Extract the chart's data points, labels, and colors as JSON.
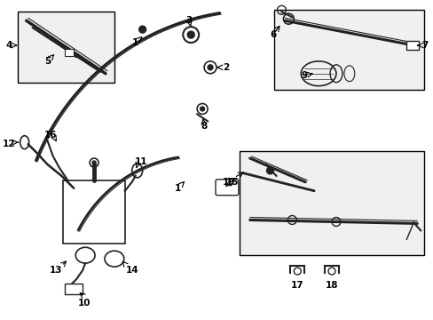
{
  "bg_color": "#ffffff",
  "fig_width": 4.89,
  "fig_height": 3.6,
  "dpi": 100,
  "lc": "#222222",
  "bc": "#000000",
  "box_fill": "#f0f0f0"
}
